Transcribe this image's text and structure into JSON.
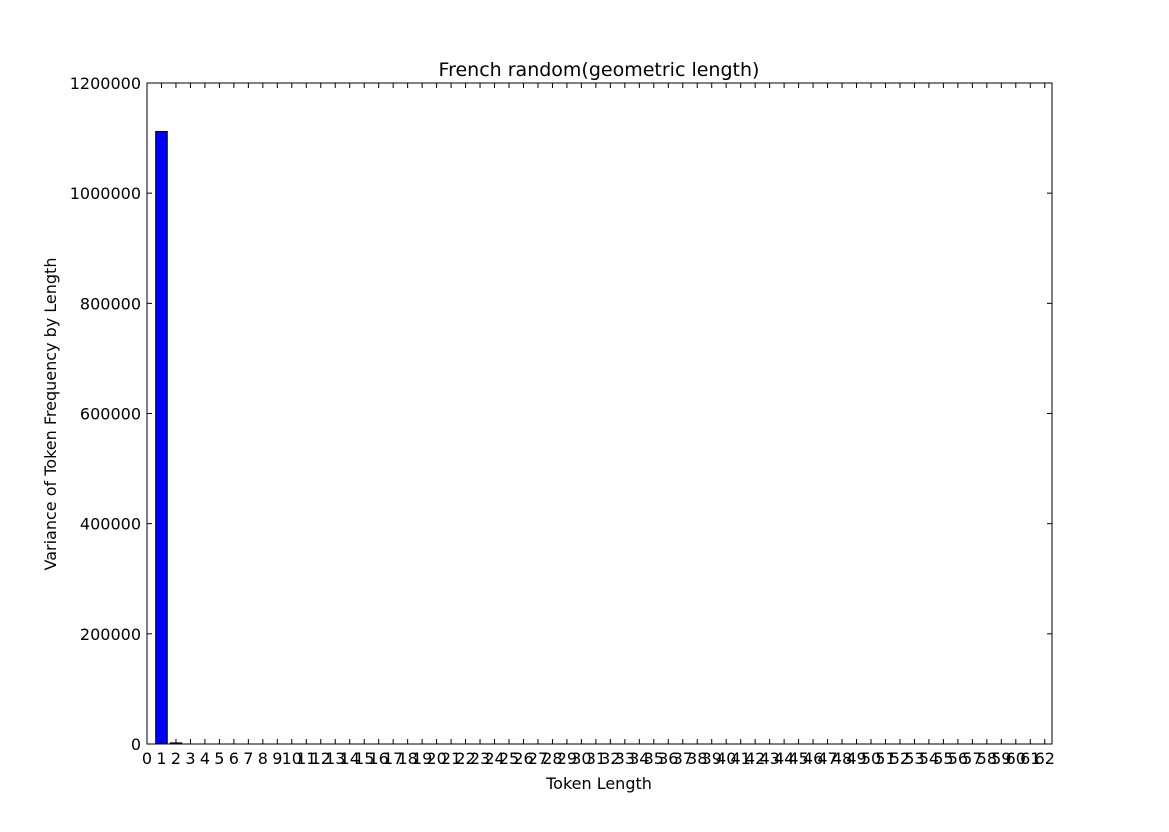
{
  "chart_data": {
    "type": "bar",
    "title": "French random(geometric length)",
    "xlabel": "Token Length",
    "ylabel": "Variance of Token Frequency by Length",
    "x_ticks": [
      0,
      1,
      2,
      3,
      4,
      5,
      6,
      7,
      8,
      9,
      10,
      11,
      12,
      13,
      14,
      15,
      16,
      17,
      18,
      19,
      20,
      21,
      22,
      23,
      24,
      25,
      26,
      27,
      28,
      29,
      30,
      31,
      32,
      33,
      34,
      35,
      36,
      37,
      38,
      39,
      40,
      41,
      42,
      43,
      44,
      45,
      46,
      47,
      48,
      49,
      50,
      51,
      52,
      53,
      54,
      55,
      56,
      57,
      58,
      59,
      60,
      61,
      62
    ],
    "x_tick_labels": [
      "0",
      "1",
      "2",
      "3",
      "4",
      "5",
      "6",
      "7",
      "8",
      "9",
      "10",
      "11",
      "12",
      "13",
      "14",
      "15",
      "16",
      "17",
      "18",
      "19",
      "20",
      "21",
      "22",
      "23",
      "24",
      "25",
      "26",
      "27",
      "28",
      "29",
      "30",
      "31",
      "32",
      "33",
      "34",
      "35",
      "36",
      "37",
      "38",
      "39",
      "40",
      "41",
      "42",
      "43",
      "44",
      "45",
      "46",
      "47",
      "48",
      "49",
      "50",
      "51",
      "52",
      "53",
      "54",
      "55",
      "56",
      "57",
      "58",
      "59",
      "60",
      "61",
      "62"
    ],
    "xlim": [
      0,
      62.5
    ],
    "ylim": [
      0,
      1200000
    ],
    "y_ticks": [
      0,
      200000,
      400000,
      600000,
      800000,
      1000000,
      1200000
    ],
    "y_tick_labels": [
      "0",
      "200000",
      "400000",
      "600000",
      "800000",
      "1000000",
      "1200000"
    ],
    "bar_width": 0.8,
    "bar_color": "#0000ff",
    "bar_edge_color": "#000000",
    "x": [
      1,
      2
    ],
    "values": [
      1112000,
      2000
    ],
    "grid": false,
    "legend": "none"
  }
}
